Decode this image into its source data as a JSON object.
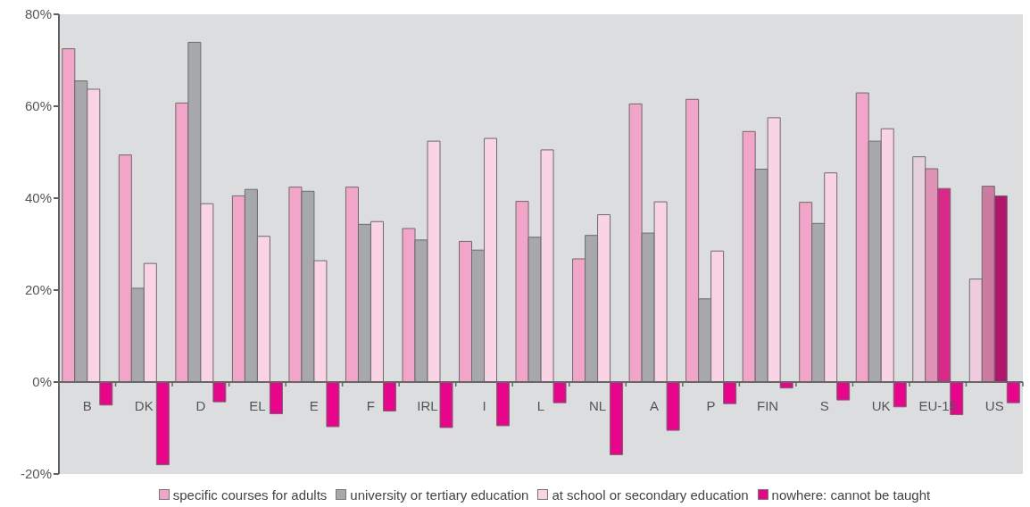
{
  "chart_data": {
    "type": "bar",
    "categories": [
      "B",
      "DK",
      "D",
      "EL",
      "E",
      "F",
      "IRL",
      "I",
      "L",
      "NL",
      "A",
      "P",
      "FIN",
      "S",
      "UK",
      "EU-15",
      "US"
    ],
    "series": [
      {
        "name": "specific courses for adults",
        "color": "#f3a5c9",
        "colors": [
          "#f3a5c9",
          "#f3a5c9",
          "#f3a5c9",
          "#f3a5c9",
          "#f3a5c9",
          "#f3a5c9",
          "#f3a5c9",
          "#f3a5c9",
          "#f3a5c9",
          "#f3a5c9",
          "#f3a5c9",
          "#f3a5c9",
          "#f3a5c9",
          "#f3a5c9",
          "#f3a5c9",
          "#e5d1dc",
          "#f0cbdd"
        ],
        "values": [
          72.5,
          49.4,
          60.7,
          40.5,
          42.4,
          42.4,
          33.4,
          30.6,
          39.3,
          26.8,
          60.5,
          61.5,
          54.5,
          39.1,
          62.9,
          49.0,
          22.4
        ]
      },
      {
        "name": "university or tertiary education",
        "color": "#a7a8ac",
        "colors": [
          "#a7a8ac",
          "#a7a8ac",
          "#a7a8ac",
          "#a7a8ac",
          "#a7a8ac",
          "#a7a8ac",
          "#a7a8ac",
          "#a7a8ac",
          "#a7a8ac",
          "#a7a8ac",
          "#a7a8ac",
          "#a7a8ac",
          "#a7a8ac",
          "#a7a8ac",
          "#a7a8ac",
          "#e091b6",
          "#cd7ba1"
        ],
        "values": [
          65.5,
          20.4,
          73.9,
          41.9,
          41.5,
          34.3,
          30.9,
          28.7,
          31.5,
          31.9,
          32.4,
          18.1,
          46.3,
          34.5,
          52.4,
          46.4,
          42.6
        ]
      },
      {
        "name": "at school or secondary education",
        "color": "#fad3e4",
        "colors": [
          "#fad3e4",
          "#fad3e4",
          "#fad3e4",
          "#fad3e4",
          "#fad3e4",
          "#fad3e4",
          "#fad3e4",
          "#fad3e4",
          "#fad3e4",
          "#fad3e4",
          "#fad3e4",
          "#fad3e4",
          "#fad3e4",
          "#fad3e4",
          "#fad3e4",
          "#d9278a",
          "#b0166a"
        ],
        "values": [
          63.7,
          25.8,
          38.8,
          31.7,
          26.4,
          34.9,
          52.4,
          53.0,
          50.5,
          36.4,
          39.2,
          28.5,
          57.5,
          45.5,
          55.1,
          42.1,
          40.5
        ]
      },
      {
        "name": "nowhere: cannot be taught",
        "color": "#e9048b",
        "values": [
          -5.0,
          -18.0,
          -4.3,
          -6.9,
          -9.7,
          -6.3,
          -9.9,
          -9.5,
          -4.5,
          -15.8,
          -10.5,
          -4.7,
          -1.3,
          -3.9,
          -5.4,
          -7.1,
          -4.5
        ]
      }
    ],
    "ylim": [
      -20,
      80
    ],
    "yticks": [
      {
        "value": -20,
        "label": "-20%"
      },
      {
        "value": 0,
        "label": "0%"
      },
      {
        "value": 20,
        "label": "20%"
      },
      {
        "value": 40,
        "label": "40%"
      },
      {
        "value": 60,
        "label": "60%"
      },
      {
        "value": 80,
        "label": "80%"
      }
    ],
    "legend": "bottom"
  }
}
